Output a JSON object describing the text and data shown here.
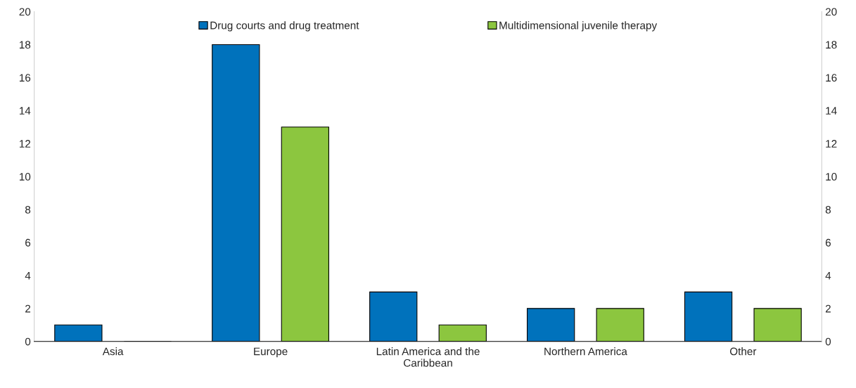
{
  "chart_data": {
    "type": "bar",
    "categories": [
      "Asia",
      "Europe",
      "Latin America and the\nCaribbean",
      "Northern America",
      "Other"
    ],
    "series": [
      {
        "name": "Drug courts and drug treatment",
        "color": "#0072bc",
        "values": [
          1,
          18,
          3,
          2,
          3
        ]
      },
      {
        "name": "Multidimensional juvenile therapy",
        "color": "#8cc63f",
        "values": [
          0,
          13,
          1,
          2,
          2
        ]
      }
    ],
    "ylim": [
      0,
      20
    ],
    "yticks": [
      0,
      2,
      4,
      6,
      8,
      10,
      12,
      14,
      16,
      18,
      20
    ],
    "y2lim": [
      0,
      20
    ],
    "y2ticks": [
      0,
      2,
      4,
      6,
      8,
      10,
      12,
      14,
      16,
      18,
      20
    ],
    "grid": false,
    "legend": "top"
  }
}
